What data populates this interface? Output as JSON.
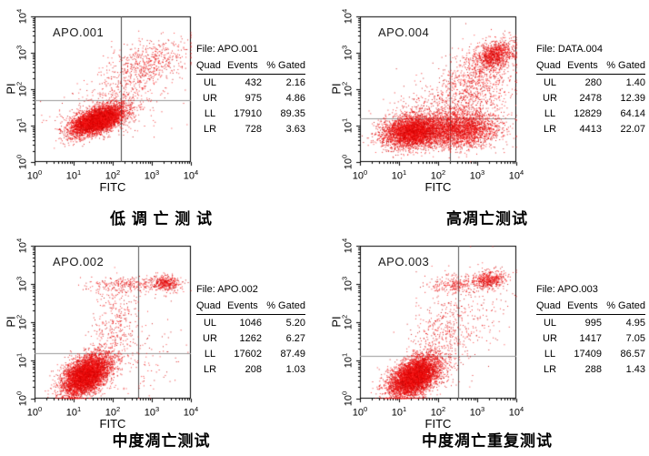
{
  "page": {
    "background": "#ffffff"
  },
  "panels": [
    {
      "plot_label": "APO.001",
      "x_label": "FITC",
      "y_label": "PI",
      "file_label": "File: APO.001",
      "title": "低 调 亡 测 试",
      "table": {
        "headers": [
          "Quad",
          "Events",
          "% Gated"
        ],
        "rows": [
          [
            "UL",
            "432",
            "2.16"
          ],
          [
            "UR",
            "975",
            "4.86"
          ],
          [
            "LL",
            "17910",
            "89.35"
          ],
          [
            "LR",
            "728",
            "3.63"
          ]
        ]
      }
    },
    {
      "plot_label": "APO.004",
      "x_label": "FITC",
      "y_label": "PI",
      "file_label": "File: DATA.004",
      "title": "高凋亡测试",
      "table": {
        "headers": [
          "Quad",
          "Events",
          "% Gated"
        ],
        "rows": [
          [
            "UL",
            "280",
            "1.40"
          ],
          [
            "UR",
            "2478",
            "12.39"
          ],
          [
            "LL",
            "12829",
            "64.14"
          ],
          [
            "LR",
            "4413",
            "22.07"
          ]
        ]
      }
    },
    {
      "plot_label": "APO.002",
      "x_label": "FITC",
      "y_label": "PI",
      "file_label": "File: APO.002",
      "title": "中度凋亡测试",
      "table": {
        "headers": [
          "Quad",
          "Events",
          "% Gated"
        ],
        "rows": [
          [
            "UL",
            "1046",
            "5.20"
          ],
          [
            "UR",
            "1262",
            "6.27"
          ],
          [
            "LL",
            "17602",
            "87.49"
          ],
          [
            "LR",
            "208",
            "1.03"
          ]
        ]
      }
    },
    {
      "plot_label": "APO.003",
      "x_label": "FITC",
      "y_label": "PI",
      "file_label": "File: APO.003",
      "title": "中度凋亡重复测试",
      "table": {
        "headers": [
          "Quad",
          "Events",
          "% Gated"
        ],
        "rows": [
          [
            "UL",
            "995",
            "4.95"
          ],
          [
            "UR",
            "1417",
            "7.05"
          ],
          [
            "LL",
            "17409",
            "86.57"
          ],
          [
            "LR",
            "288",
            "1.43"
          ]
        ]
      }
    }
  ],
  "chart_data": [
    {
      "type": "scatter",
      "title": "APO.001",
      "panel_caption": "低 调 亡 测 试",
      "xlabel": "FITC",
      "ylabel": "PI",
      "x_scale": "log",
      "y_scale": "log",
      "xlim": [
        1,
        10000
      ],
      "ylim": [
        1,
        10000
      ],
      "tick_exponents": [
        0,
        1,
        2,
        3,
        4
      ],
      "quadrant_lines_log10": {
        "x": 2.2,
        "y": 1.7
      },
      "quadrant_lines_values": {
        "x": 158,
        "y": 50
      },
      "quadrant_stats": {
        "file": "APO.001",
        "rows": [
          {
            "quad": "UL",
            "events": 432,
            "pct_gated": 2.16
          },
          {
            "quad": "UR",
            "events": 975,
            "pct_gated": 4.86
          },
          {
            "quad": "LL",
            "events": 17910,
            "pct_gated": 89.35
          },
          {
            "quad": "LR",
            "events": 728,
            "pct_gated": 3.63
          }
        ]
      },
      "seed": 11,
      "clusters": [
        {
          "n": 5200,
          "cx": 1.6,
          "cy": 1.15,
          "sx": 0.34,
          "sy": 0.2,
          "rho": 0.55
        },
        {
          "n": 520,
          "cx": 2.95,
          "cy": 2.75,
          "sx": 0.5,
          "sy": 0.35,
          "rho": 0.45
        },
        {
          "n": 280,
          "cx": 2.2,
          "cy": 1.95,
          "sx": 0.55,
          "sy": 0.45,
          "rho": 0.3
        },
        {
          "n": 180,
          "cx": 1.9,
          "cy": 1.35,
          "sx": 0.75,
          "sy": 0.35,
          "rho": 0.1
        }
      ],
      "style": {
        "dot_colors": [
          "#ea0000",
          "#ff2222",
          "#c80000"
        ],
        "vline_color": "#444444",
        "hline_color": "#999999"
      }
    },
    {
      "type": "scatter",
      "title": "APO.004",
      "panel_caption": "高凋亡测试",
      "xlabel": "FITC",
      "ylabel": "PI",
      "x_scale": "log",
      "y_scale": "log",
      "xlim": [
        1,
        10000
      ],
      "ylim": [
        1,
        10000
      ],
      "tick_exponents": [
        0,
        1,
        2,
        3,
        4
      ],
      "quadrant_lines_log10": {
        "x": 2.3,
        "y": 1.2
      },
      "quadrant_lines_values": {
        "x": 200,
        "y": 16
      },
      "quadrant_stats": {
        "file": "DATA.004",
        "rows": [
          {
            "quad": "UL",
            "events": 280,
            "pct_gated": 1.4
          },
          {
            "quad": "UR",
            "events": 2478,
            "pct_gated": 12.39
          },
          {
            "quad": "LL",
            "events": 12829,
            "pct_gated": 64.14
          },
          {
            "quad": "LR",
            "events": 4413,
            "pct_gated": 22.07
          }
        ]
      },
      "seed": 22,
      "clusters": [
        {
          "n": 3800,
          "cx": 1.35,
          "cy": 0.85,
          "sx": 0.38,
          "sy": 0.22,
          "rho": 0.15
        },
        {
          "n": 2600,
          "cx": 2.55,
          "cy": 0.9,
          "sx": 0.5,
          "sy": 0.25,
          "rho": 0.05
        },
        {
          "n": 1000,
          "cx": 3.45,
          "cy": 2.95,
          "sx": 0.24,
          "sy": 0.2,
          "rho": 0.3
        },
        {
          "n": 900,
          "cx": 2.95,
          "cy": 2.1,
          "sx": 0.5,
          "sy": 0.55,
          "rho": 0.35
        },
        {
          "n": 350,
          "cx": 2.0,
          "cy": 1.5,
          "sx": 0.6,
          "sy": 0.4,
          "rho": 0.2
        }
      ],
      "style": {
        "dot_colors": [
          "#ea0000",
          "#ff2222",
          "#c80000"
        ],
        "vline_color": "#555555",
        "hline_color": "#999999"
      }
    },
    {
      "type": "scatter",
      "title": "APO.002",
      "panel_caption": "中度凋亡测试",
      "xlabel": "FITC",
      "ylabel": "PI",
      "x_scale": "log",
      "y_scale": "log",
      "xlim": [
        1,
        10000
      ],
      "ylim": [
        1,
        10000
      ],
      "tick_exponents": [
        0,
        1,
        2,
        3,
        4
      ],
      "quadrant_lines_log10": {
        "x": 2.65,
        "y": 1.2
      },
      "quadrant_lines_values": {
        "x": 450,
        "y": 16
      },
      "quadrant_stats": {
        "file": "APO.002",
        "rows": [
          {
            "quad": "UL",
            "events": 1046,
            "pct_gated": 5.2
          },
          {
            "quad": "UR",
            "events": 1262,
            "pct_gated": 6.27
          },
          {
            "quad": "LL",
            "events": 17602,
            "pct_gated": 87.49
          },
          {
            "quad": "LR",
            "events": 208,
            "pct_gated": 1.03
          }
        ]
      },
      "seed": 33,
      "clusters": [
        {
          "n": 5200,
          "cx": 1.32,
          "cy": 0.62,
          "sx": 0.3,
          "sy": 0.27,
          "rho": 0.45
        },
        {
          "n": 280,
          "cx": 2.4,
          "cy": 2.98,
          "sx": 0.5,
          "sy": 0.1,
          "rho": 0
        },
        {
          "n": 380,
          "cx": 3.35,
          "cy": 3.03,
          "sx": 0.18,
          "sy": 0.1,
          "rho": 0
        },
        {
          "n": 380,
          "cx": 2.05,
          "cy": 1.8,
          "sx": 0.35,
          "sy": 0.65,
          "rho": 0.15
        },
        {
          "n": 90,
          "cx": 2.9,
          "cy": 1.1,
          "sx": 0.5,
          "sy": 0.6,
          "rho": 0
        }
      ],
      "style": {
        "dot_colors": [
          "#ea0000",
          "#ff2222",
          "#c80000"
        ],
        "vline_color": "#555555",
        "hline_color": "#999999"
      }
    },
    {
      "type": "scatter",
      "title": "APO.003",
      "panel_caption": "中度凋亡重复测试",
      "xlabel": "FITC",
      "ylabel": "PI",
      "x_scale": "log",
      "y_scale": "log",
      "xlim": [
        1,
        10000
      ],
      "ylim": [
        1,
        10000
      ],
      "tick_exponents": [
        0,
        1,
        2,
        3,
        4
      ],
      "quadrant_lines_log10": {
        "x": 2.5,
        "y": 1.12
      },
      "quadrant_lines_values": {
        "x": 316,
        "y": 13
      },
      "quadrant_stats": {
        "file": "APO.003",
        "rows": [
          {
            "quad": "UL",
            "events": 995,
            "pct_gated": 4.95
          },
          {
            "quad": "UR",
            "events": 1417,
            "pct_gated": 7.05
          },
          {
            "quad": "LL",
            "events": 17409,
            "pct_gated": 86.57
          },
          {
            "quad": "LR",
            "events": 288,
            "pct_gated": 1.43
          }
        ]
      },
      "seed": 44,
      "clusters": [
        {
          "n": 5200,
          "cx": 1.38,
          "cy": 0.58,
          "sx": 0.32,
          "sy": 0.27,
          "rho": 0.45
        },
        {
          "n": 220,
          "cx": 2.4,
          "cy": 3.0,
          "sx": 0.35,
          "sy": 0.12,
          "rho": 0
        },
        {
          "n": 480,
          "cx": 3.3,
          "cy": 3.12,
          "sx": 0.22,
          "sy": 0.12,
          "rho": 0.2
        },
        {
          "n": 420,
          "cx": 2.15,
          "cy": 1.75,
          "sx": 0.4,
          "sy": 0.65,
          "rho": 0.1
        },
        {
          "n": 150,
          "cx": 3.1,
          "cy": 2.2,
          "sx": 0.45,
          "sy": 0.65,
          "rho": 0.2
        }
      ],
      "style": {
        "dot_colors": [
          "#ea0000",
          "#ff2222",
          "#c80000"
        ],
        "vline_color": "#555555",
        "hline_color": "#999999"
      }
    }
  ]
}
